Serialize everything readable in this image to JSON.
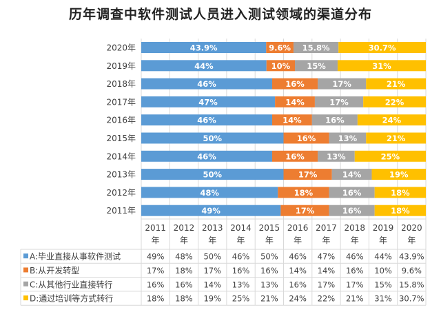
{
  "chart_data": {
    "type": "bar",
    "orientation": "horizontal",
    "stacked": "percent",
    "title": "历年调查中软件测试人员进入测试领域的渠道分布",
    "categories": [
      "2011年",
      "2012年",
      "2013年",
      "2014年",
      "2015年",
      "2016年",
      "2017年",
      "2018年",
      "2019年",
      "2020年"
    ],
    "table_headers": [
      [
        "2011",
        "年"
      ],
      [
        "2012",
        "年"
      ],
      [
        "2013",
        "年"
      ],
      [
        "2014",
        "年"
      ],
      [
        "2015",
        "年"
      ],
      [
        "2016",
        "年"
      ],
      [
        "2017",
        "年"
      ],
      [
        "2018",
        "年"
      ],
      [
        "2019",
        "年"
      ],
      [
        "2020",
        "年"
      ]
    ],
    "series": [
      {
        "name": "A:毕业直接从事软件测试",
        "color": "#5b9bd5",
        "values": [
          49,
          48,
          50,
          46,
          50,
          46,
          47,
          46,
          44,
          43.9
        ],
        "labels": [
          "49%",
          "48%",
          "50%",
          "46%",
          "50%",
          "46%",
          "47%",
          "46%",
          "44%",
          "43.9%"
        ]
      },
      {
        "name": "B:从开发转型",
        "color": "#ed7d31",
        "values": [
          17,
          18,
          17,
          16,
          16,
          14,
          14,
          16,
          10,
          9.6
        ],
        "labels": [
          "17%",
          "18%",
          "17%",
          "16%",
          "16%",
          "14%",
          "14%",
          "16%",
          "10%",
          "9.6%"
        ]
      },
      {
        "name": "C:从其他行业直接转行",
        "color": "#a5a5a5",
        "values": [
          16,
          16,
          14,
          13,
          13,
          16,
          17,
          17,
          15,
          15.8
        ],
        "labels": [
          "16%",
          "16%",
          "14%",
          "13%",
          "13%",
          "16%",
          "17%",
          "17%",
          "15%",
          "15.8%"
        ]
      },
      {
        "name": "D:通过培训等方式转行",
        "color": "#ffc000",
        "values": [
          18,
          18,
          19,
          25,
          21,
          24,
          22,
          21,
          31,
          30.7
        ],
        "labels": [
          "18%",
          "18%",
          "19%",
          "25%",
          "21%",
          "24%",
          "22%",
          "21%",
          "31%",
          "30.7%"
        ]
      }
    ],
    "xlim": [
      0,
      100
    ],
    "grid": true,
    "legend": "data-table-bottom"
  }
}
